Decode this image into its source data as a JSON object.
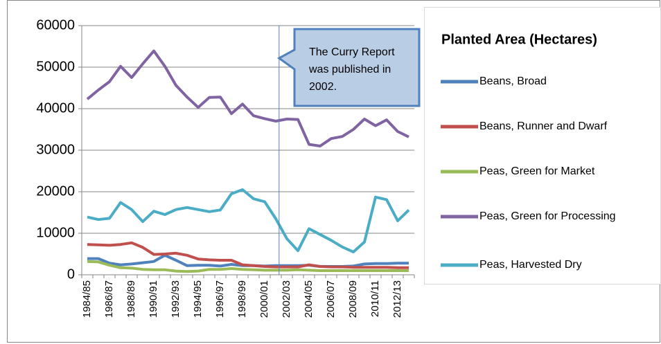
{
  "chart_data": {
    "type": "line",
    "title": "Planted Area (Hectares)",
    "annotation": [
      "The Curry Report",
      "was published in",
      "2002."
    ],
    "annotation_at": "2002/03",
    "categories": [
      "1984/85",
      null,
      "1986/87",
      null,
      "1988/89",
      null,
      "1990/91",
      null,
      "1992/93",
      null,
      "1994/95",
      null,
      "1996/97",
      null,
      "1998/99",
      null,
      "2000/01",
      null,
      "2002/03",
      null,
      "2004/05",
      null,
      "2006/07",
      null,
      "2008/09",
      null,
      "2010/11",
      null,
      "2012/13",
      null
    ],
    "series": [
      {
        "name": "Beans, Broad",
        "color": "#4f81bd",
        "values": [
          3900,
          3900,
          2800,
          2400,
          2600,
          2900,
          3200,
          4700,
          3500,
          2200,
          2300,
          2300,
          2100,
          2500,
          2200,
          2200,
          2100,
          2200,
          2200,
          2200,
          2300,
          2000,
          2000,
          2000,
          2100,
          2600,
          2700,
          2700,
          2800,
          2800
        ]
      },
      {
        "name": "Beans, Runner and Dwarf",
        "color": "#c0504d",
        "values": [
          7300,
          7200,
          7100,
          7300,
          7700,
          6600,
          4900,
          5000,
          5200,
          4700,
          3800,
          3600,
          3500,
          3500,
          2400,
          2200,
          2000,
          1900,
          1900,
          1900,
          2400,
          2000,
          1900,
          1900,
          1800,
          1800,
          1800,
          1800,
          1700,
          1700
        ]
      },
      {
        "name": "Peas, Green for Market",
        "color": "#9bbb59",
        "values": [
          3200,
          3100,
          2300,
          1700,
          1600,
          1300,
          1200,
          1200,
          900,
          800,
          900,
          1300,
          1300,
          1500,
          1300,
          1200,
          1100,
          1100,
          1100,
          1200,
          1100,
          1000,
          1000,
          1000,
          1000,
          1000,
          1000,
          1000,
          1000,
          1000
        ]
      },
      {
        "name": "Peas, Green for Processing",
        "color": "#8064a2",
        "values": [
          42300,
          44500,
          46500,
          50200,
          47500,
          50800,
          53900,
          50200,
          45600,
          42800,
          40300,
          42700,
          42800,
          38800,
          41100,
          38300,
          37600,
          37000,
          37500,
          37400,
          31400,
          31000,
          32800,
          33300,
          35000,
          37500,
          35900,
          37300,
          34500,
          33200
        ]
      },
      {
        "name": "Peas, Harvested Dry",
        "color": "#4bacc6",
        "values": [
          13900,
          13300,
          13600,
          17400,
          15700,
          12800,
          15300,
          14500,
          15700,
          16200,
          15700,
          15200,
          15600,
          19500,
          20500,
          18300,
          17600,
          13500,
          8700,
          5800,
          11100,
          9700,
          8300,
          6700,
          5500,
          7900,
          18700,
          18100,
          13000,
          15600
        ]
      }
    ],
    "ylim": [
      0,
      60000
    ],
    "yticks": [
      0,
      10000,
      20000,
      30000,
      40000,
      50000,
      60000
    ],
    "grid": true
  }
}
